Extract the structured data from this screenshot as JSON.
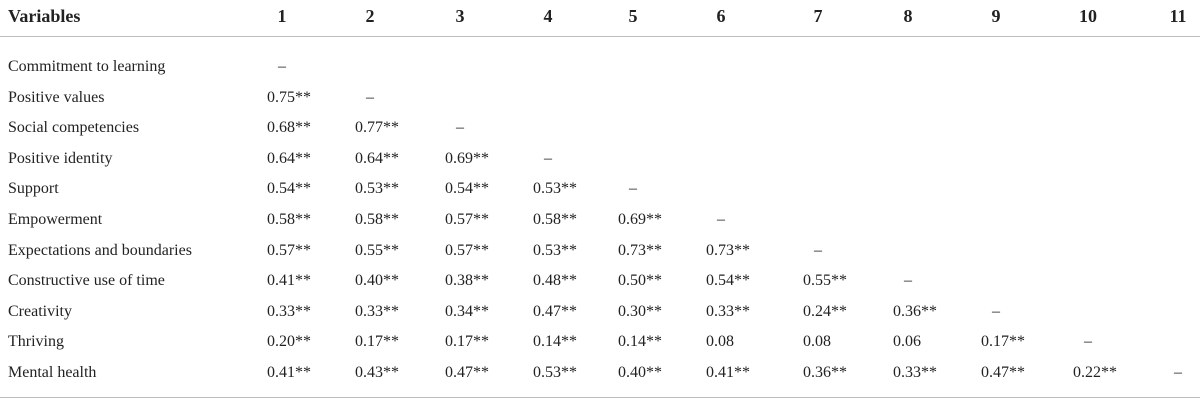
{
  "table": {
    "header": [
      "Variables",
      "1",
      "2",
      "3",
      "4",
      "5",
      "6",
      "7",
      "8",
      "9",
      "10",
      "11"
    ],
    "rows": [
      {
        "label": "Commitment to learning",
        "cells": [
          "–"
        ]
      },
      {
        "label": "Positive values",
        "cells": [
          "0.75**",
          "–"
        ]
      },
      {
        "label": "Social competencies",
        "cells": [
          "0.68**",
          "0.77**",
          "–"
        ]
      },
      {
        "label": "Positive identity",
        "cells": [
          "0.64**",
          "0.64**",
          "0.69**",
          "–"
        ]
      },
      {
        "label": "Support",
        "cells": [
          "0.54**",
          "0.53**",
          "0.54**",
          "0.53**",
          "–"
        ]
      },
      {
        "label": "Empowerment",
        "cells": [
          "0.58**",
          "0.58**",
          "0.57**",
          "0.58**",
          "0.69**",
          "–"
        ]
      },
      {
        "label": "Expectations and boundaries",
        "cells": [
          "0.57**",
          "0.55**",
          "0.57**",
          "0.53**",
          "0.73**",
          "0.73**",
          "–"
        ]
      },
      {
        "label": "Constructive use of time",
        "cells": [
          "0.41**",
          "0.40**",
          "0.38**",
          "0.48**",
          "0.50**",
          "0.54**",
          "0.55**",
          "–"
        ]
      },
      {
        "label": "Creativity",
        "cells": [
          "0.33**",
          "0.33**",
          "0.34**",
          "0.47**",
          "0.30**",
          "0.33**",
          "0.24**",
          "0.36**",
          "–"
        ]
      },
      {
        "label": "Thriving",
        "cells": [
          "0.20**",
          "0.17**",
          "0.17**",
          "0.14**",
          "0.14**",
          "0.08",
          "0.08",
          "0.06",
          "0.17**",
          "–"
        ]
      },
      {
        "label": "Mental health",
        "cells": [
          "0.41**",
          "0.43**",
          "0.47**",
          "0.53**",
          "0.40**",
          "0.41**",
          "0.36**",
          "0.33**",
          "0.47**",
          "0.22**",
          "–"
        ]
      }
    ]
  }
}
